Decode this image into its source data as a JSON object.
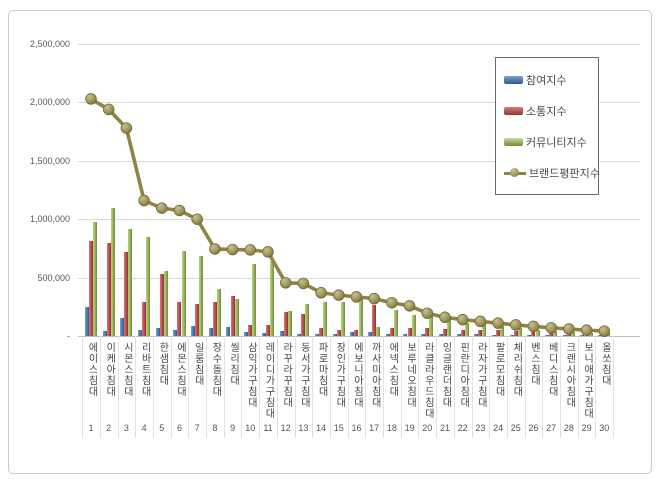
{
  "chart_data": {
    "type": "bar",
    "subtype": "grouped-bars-with-line-overlay",
    "title": "",
    "xlabel": "",
    "ylabel": "",
    "ylim": [
      0,
      2500000
    ],
    "ytick_interval": 500000,
    "ytick_labels": [
      "2,500,000",
      "2,000,000",
      "1,500,000",
      "1,000,000",
      "500,000",
      "-"
    ],
    "grid": true,
    "legend_position": "upper-right-inside",
    "categories": [
      "에이스침대",
      "이케아침대",
      "시몬스침대",
      "리바트침대",
      "한샘침대",
      "에몬스침대",
      "일룸침대",
      "장수돌침대",
      "씰리침대",
      "삼익가구침대",
      "레이디가구침대",
      "라꾸라꾸침대",
      "동서가구침대",
      "파로마침대",
      "장인가구침대",
      "에보니아침대",
      "까사미아침대",
      "에넥스침대",
      "보루네오침대",
      "라클라우드침대",
      "잉글랜더침대",
      "핀란디아침대",
      "라자가구침대",
      "팔로모침대",
      "체리쉬침대",
      "벤스침대",
      "베디스침대",
      "크렌시아침대",
      "보니애가구침대",
      "올쏘침대"
    ],
    "rank_labels": [
      "1",
      "2",
      "3",
      "4",
      "5",
      "6",
      "7",
      "8",
      "9",
      "10",
      "11",
      "12",
      "13",
      "14",
      "15",
      "16",
      "17",
      "18",
      "19",
      "20",
      "21",
      "22",
      "23",
      "24",
      "25",
      "26",
      "27",
      "28",
      "29",
      "30"
    ],
    "series": [
      {
        "name": "참여지수",
        "type": "bar",
        "color": "#4f81bd",
        "values": [
          245000,
          45000,
          150000,
          50000,
          65000,
          50000,
          85000,
          70000,
          75000,
          35000,
          25000,
          45000,
          20000,
          20000,
          20000,
          30000,
          30000,
          20000,
          20000,
          20000,
          15000,
          15000,
          15000,
          12000,
          10000,
          10000,
          8000,
          8000,
          5000,
          5000
        ]
      },
      {
        "name": "소통지수",
        "type": "bar",
        "color": "#c0504d",
        "values": [
          810000,
          795000,
          715000,
          290000,
          535000,
          290000,
          270000,
          290000,
          345000,
          95000,
          95000,
          205000,
          190000,
          70000,
          50000,
          55000,
          265000,
          70000,
          70000,
          70000,
          60000,
          50000,
          50000,
          48000,
          40000,
          35000,
          30000,
          25000,
          20000,
          15000
        ]
      },
      {
        "name": "커뮤니티지수",
        "type": "bar",
        "color": "#9bbb59",
        "values": [
          975000,
          1100000,
          915000,
          850000,
          555000,
          730000,
          685000,
          405000,
          320000,
          620000,
          640000,
          210000,
          270000,
          290000,
          295000,
          325000,
          80000,
          220000,
          180000,
          175000,
          155000,
          110000,
          100000,
          88000,
          70000,
          55000,
          45000,
          35000,
          28000,
          22000
        ]
      },
      {
        "name": "브랜드평판지수",
        "type": "line",
        "color": "#8e8545",
        "values": [
          2030000,
          1940000,
          1780000,
          1160000,
          1095000,
          1075000,
          1000000,
          745000,
          740000,
          737000,
          720000,
          455000,
          450000,
          370000,
          350000,
          335000,
          320000,
          285000,
          258000,
          195000,
          160000,
          140000,
          125000,
          110000,
          95000,
          82000,
          70000,
          60000,
          50000,
          42000
        ]
      }
    ]
  }
}
